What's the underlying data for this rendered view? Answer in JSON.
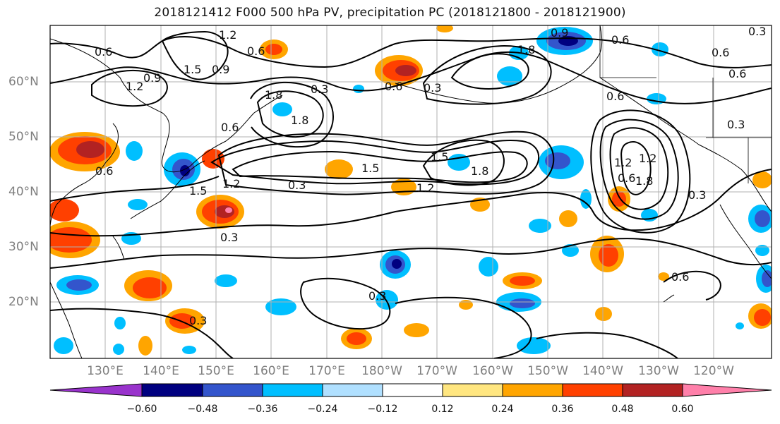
{
  "title": "2018121412 F000 500 hPa PV, precipitation PC (2018121800 - 2018121900)",
  "latitude_labels": [
    "60°N",
    "50°N",
    "40°N",
    "30°N",
    "20°N"
  ],
  "longitude_labels": [
    "130°E",
    "140°E",
    "150°E",
    "160°E",
    "170°E",
    "180°W",
    "170°W",
    "160°W",
    "150°W",
    "140°W",
    "130°W",
    "120°W"
  ],
  "contour_labels": [
    "0.6",
    "1.2",
    "0.9",
    "1.5",
    "0.6",
    "0.6",
    "0.3",
    "0.6",
    "1.8",
    "1.8",
    "0.9",
    "0.6",
    "0.6",
    "1.2",
    "0.9",
    "0.6",
    "1.8",
    "0.3",
    "0.6",
    "1.5",
    "1.8",
    "1.2",
    "0.6",
    "0.3",
    "1.2",
    "1.5",
    "1.8",
    "0.3",
    "1.5",
    "0.6",
    "1.2",
    "0.3",
    "1.2",
    "0.3",
    "0.3",
    "0.6",
    "0.3",
    "0.3"
  ],
  "colorbar": {
    "tick_labels": [
      "−0.60",
      "−0.48",
      "−0.36",
      "−0.24",
      "−0.12",
      "0.12",
      "0.24",
      "0.36",
      "0.48",
      "0.60"
    ],
    "colors": [
      "#9933cc",
      "#000080",
      "#3355cc",
      "#00bfff",
      "#b0e0ff",
      "#ffffff",
      "#ffe680",
      "#ffa500",
      "#ff4000",
      "#b22222",
      "#ff80aa"
    ]
  }
}
